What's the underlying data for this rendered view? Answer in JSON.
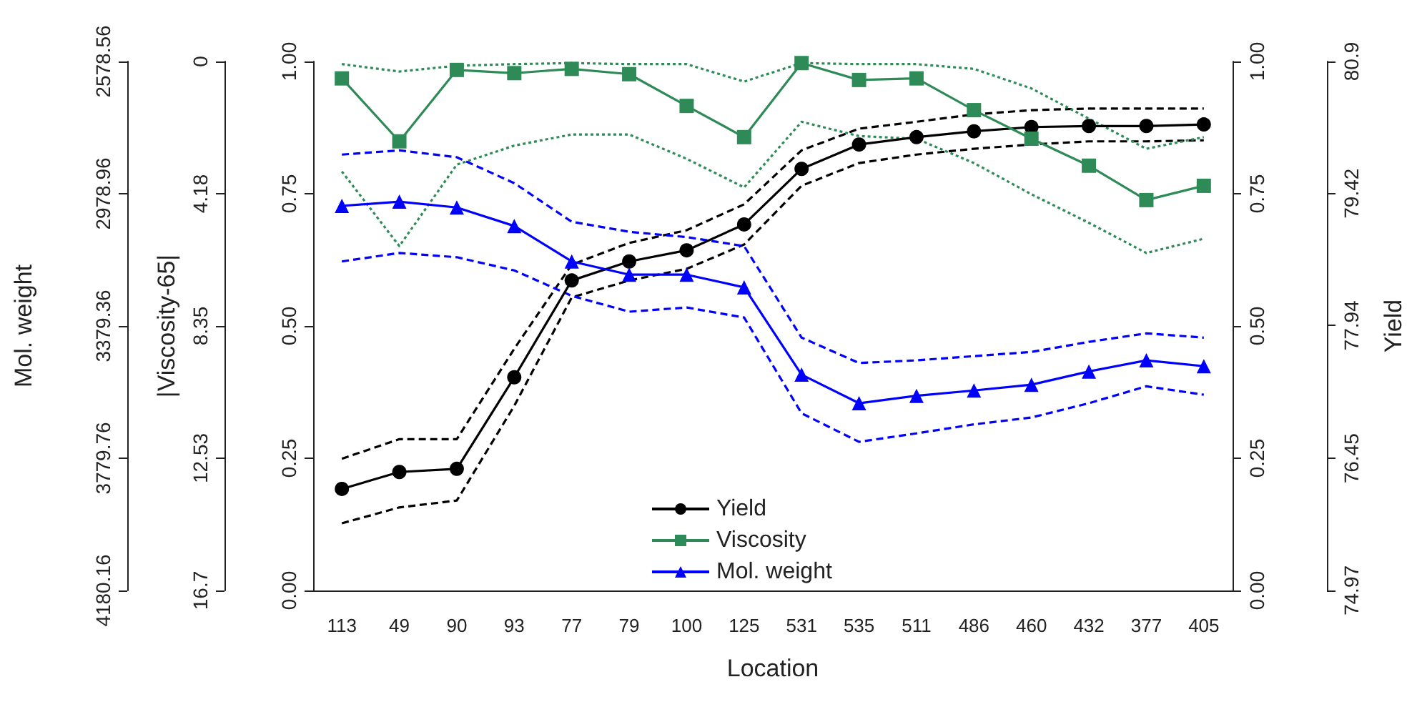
{
  "chart_data": {
    "type": "line",
    "xlabel": "Location",
    "y3label": "Yield",
    "annotations": [
      "Mol. weight",
      "2578.56",
      "2978.96",
      "3379.36",
      "3779.76",
      "4180.16",
      "|Viscosity-65|",
      "0",
      "4.18",
      "8.35",
      "12.53",
      "16.7"
    ],
    "categories": [
      "113",
      "49",
      "90",
      "93",
      "77",
      "79",
      "100",
      "125",
      "531",
      "535",
      "511",
      "486",
      "460",
      "432",
      "377",
      "405"
    ],
    "series": [
      {
        "color": "#000000",
        "marker": "none",
        "line_style": "dashed",
        "values": [
          0.249,
          0.286,
          0.286,
          0.457,
          0.616,
          0.657,
          0.681,
          0.73,
          0.832,
          0.873,
          0.886,
          0.9,
          0.908,
          0.911,
          0.911,
          0.911
        ]
      },
      {
        "color": "#000000",
        "marker": "none",
        "line_style": "dashed",
        "values": [
          0.127,
          0.157,
          0.17,
          0.349,
          0.554,
          0.586,
          0.608,
          0.654,
          0.765,
          0.808,
          0.824,
          0.835,
          0.843,
          0.849,
          0.849,
          0.851
        ]
      },
      {
        "color": "#2e8b57",
        "marker": "none",
        "line_style": "dotted",
        "values": [
          0.995,
          0.981,
          0.992,
          0.995,
          0.997,
          0.995,
          0.995,
          0.962,
          0.997,
          0.995,
          0.995,
          0.986,
          0.949,
          0.892,
          0.835,
          0.857
        ]
      },
      {
        "color": "#2e8b57",
        "marker": "none",
        "line_style": "dotted",
        "values": [
          0.792,
          0.651,
          0.805,
          0.841,
          0.862,
          0.862,
          0.816,
          0.762,
          0.886,
          0.859,
          0.854,
          0.808,
          0.749,
          0.695,
          0.638,
          0.665
        ]
      },
      {
        "color": "#0000ff",
        "marker": "none",
        "line_style": "dashed",
        "values": [
          0.824,
          0.832,
          0.819,
          0.77,
          0.697,
          0.678,
          0.668,
          0.651,
          0.478,
          0.43,
          0.435,
          0.443,
          0.451,
          0.47,
          0.486,
          0.478
        ]
      },
      {
        "color": "#0000ff",
        "marker": "none",
        "line_style": "dashed",
        "values": [
          0.622,
          0.638,
          0.63,
          0.605,
          0.557,
          0.527,
          0.535,
          0.516,
          0.335,
          0.281,
          0.297,
          0.314,
          0.327,
          0.354,
          0.386,
          0.37
        ]
      },
      {
        "name": "Yield",
        "color": "#000000",
        "marker": "circle",
        "line_style": "solid",
        "values": [
          0.192,
          0.224,
          0.23,
          0.403,
          0.586,
          0.622,
          0.643,
          0.692,
          0.797,
          0.843,
          0.857,
          0.868,
          0.876,
          0.878,
          0.878,
          0.881
        ]
      },
      {
        "name": "Viscosity",
        "color": "#2e8b57",
        "marker": "square",
        "line_style": "solid",
        "values": [
          0.968,
          0.849,
          0.984,
          0.978,
          0.986,
          0.976,
          0.916,
          0.857,
          0.997,
          0.965,
          0.968,
          0.908,
          0.854,
          0.803,
          0.738,
          0.765
        ]
      },
      {
        "name": "Mol. weight",
        "color": "#0000ff",
        "marker": "triangle",
        "line_style": "solid",
        "values": [
          0.727,
          0.735,
          0.724,
          0.689,
          0.622,
          0.597,
          0.597,
          0.573,
          0.408,
          0.354,
          0.368,
          0.378,
          0.389,
          0.414,
          0.435,
          0.424
        ]
      }
    ],
    "ylim": [
      0,
      1
    ],
    "yticks": [
      {
        "value": 0,
        "label": "0.00"
      },
      {
        "value": 0.25,
        "label": "0.25"
      },
      {
        "value": 0.5,
        "label": "0.50"
      },
      {
        "value": 0.75,
        "label": "0.75"
      },
      {
        "value": 1,
        "label": "1.00"
      }
    ],
    "y2lim": [
      0,
      1
    ],
    "y2ticks": [
      {
        "value": 0,
        "label": "0.00"
      },
      {
        "value": 0.25,
        "label": "0.25"
      },
      {
        "value": 0.5,
        "label": "0.50"
      },
      {
        "value": 0.75,
        "label": "0.75"
      },
      {
        "value": 1,
        "label": "1.00"
      }
    ],
    "y3lim": [
      74.97,
      80.9
    ],
    "y3ticks": [
      74.97,
      76.45,
      77.94,
      79.42,
      80.9
    ],
    "legend": "bottom",
    "grid": false
  }
}
